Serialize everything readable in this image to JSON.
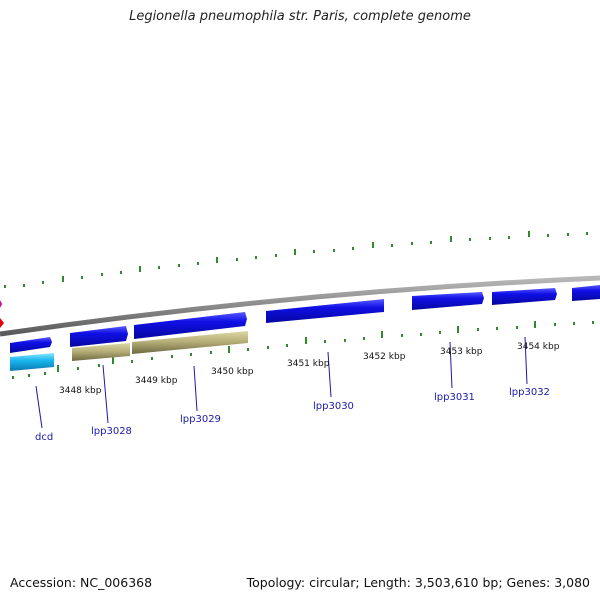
{
  "title": "Legionella pneumophila str. Paris, complete genome",
  "footer": {
    "accession": "Accession: NC_006368",
    "stats": "Topology: circular; Length: 3,503,610 bp; Genes: 3,080"
  },
  "colors": {
    "cds": "#1010e6",
    "dcd": "#1ab8f0",
    "feature_olive": "#b8b07a",
    "backbone": "#8a8a8a",
    "tick": "#2e8b2e",
    "label": "#1a1aa8",
    "marker_red": "#e60000",
    "marker_magenta": "#d6009a"
  },
  "scale_labels": [
    "3448 kbp",
    "3449 kbp",
    "3450 kbp",
    "3451 kbp",
    "3452 kbp",
    "3453 kbp",
    "3454 kbp"
  ],
  "gene_labels": [
    "dcd",
    "lpp3028",
    "lpp3029",
    "lpp3030",
    "lpp3031",
    "lpp3032"
  ]
}
